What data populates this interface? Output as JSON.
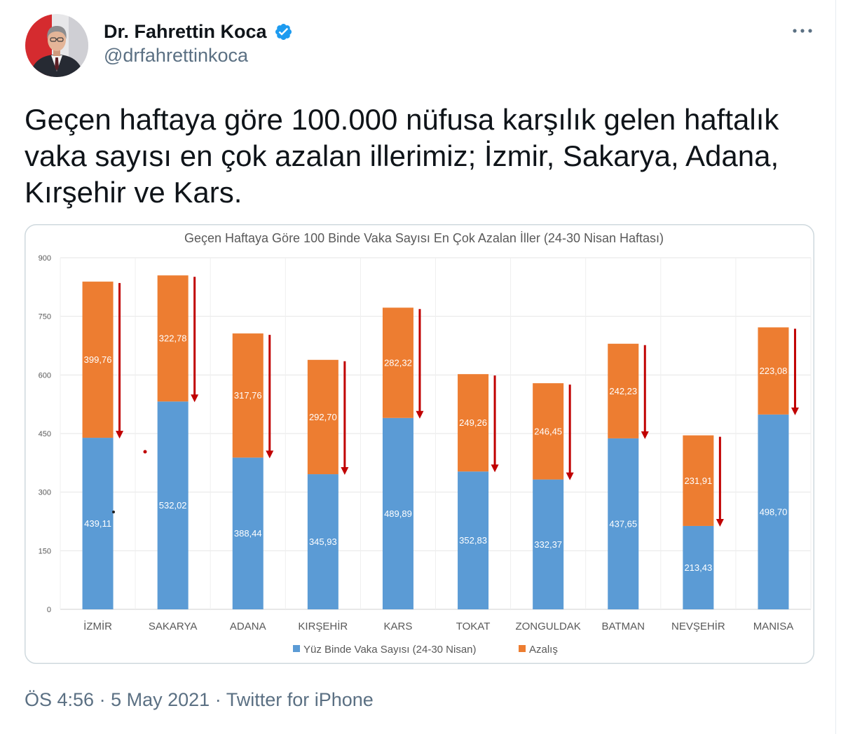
{
  "tweet": {
    "author": {
      "name": "Dr. Fahrettin Koca",
      "handle": "@drfahrettinkoca",
      "verified": true
    },
    "text": "Geçen haftaya göre 100.000 nüfusa karşılık gelen haftalık vaka sayısı en çok azalan illerimiz; İzmir, Sakarya, Adana, Kırşehir ve Kars.",
    "footer": {
      "time": "ÖS 4:56",
      "separator": "·",
      "date": "5 May 2021",
      "source": "Twitter for iPhone"
    }
  },
  "icons": {
    "verified": "verified-badge-icon",
    "more": "more-options-icon",
    "avatar": "avatar"
  },
  "colors": {
    "text_primary": "#0f1419",
    "text_secondary": "#5b7083",
    "verified_blue": "#1d9bf0",
    "media_border": "#cfd9de"
  },
  "chart_data": {
    "type": "bar",
    "stacked": true,
    "title": "Geçen Haftaya Göre 100 Binde Vaka Sayısı En Çok Azalan İller (24-30 Nisan Haftası)",
    "categories": [
      "İZMİR",
      "SAKARYA",
      "ADANA",
      "KIRŞEHİR",
      "KARS",
      "TOKAT",
      "ZONGULDAK",
      "BATMAN",
      "NEVŞEHİR",
      "MANISA"
    ],
    "series": [
      {
        "name": "Yüz Binde Vaka Sayısı (24-30 Nisan)",
        "color": "#5b9bd5",
        "values": [
          439.11,
          532.02,
          388.44,
          345.93,
          489.89,
          352.83,
          332.37,
          437.65,
          213.43,
          498.7
        ],
        "labels": [
          "439,11",
          "532,02",
          "388,44",
          "345,93",
          "489,89",
          "352,83",
          "332,37",
          "437,65",
          "213,43",
          "498,70"
        ]
      },
      {
        "name": "Azalış",
        "color": "#ed7d31",
        "values": [
          399.76,
          322.78,
          317.76,
          292.7,
          282.32,
          249.26,
          246.45,
          242.23,
          231.91,
          223.08
        ],
        "labels": [
          "399,76",
          "322,78",
          "317,76",
          "292,70",
          "282,32",
          "249,26",
          "246,45",
          "242,23",
          "231,91",
          "223,08"
        ]
      }
    ],
    "ylim": [
      0,
      900
    ],
    "yticks": [
      0,
      150,
      300,
      450,
      600,
      750,
      900
    ],
    "ytick_labels": [
      "0",
      "150",
      "300",
      "450",
      "600",
      "750",
      "900"
    ],
    "xlabel": "",
    "ylabel": "",
    "grid": true,
    "legend": "bottom",
    "arrow_color": "#c00000"
  }
}
